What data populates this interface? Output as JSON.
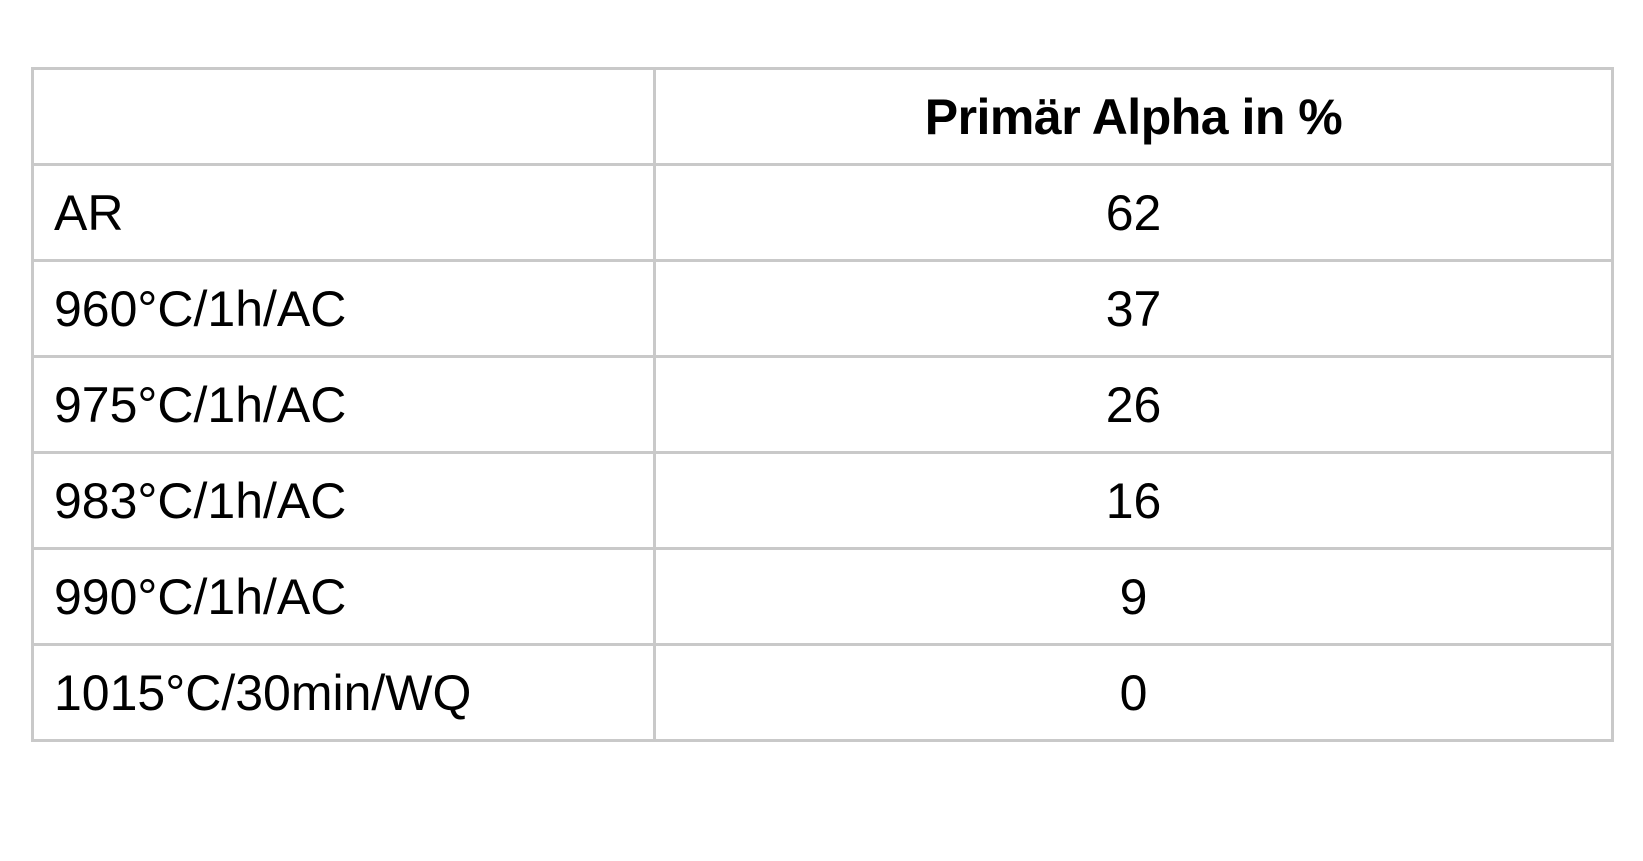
{
  "table": {
    "header": {
      "label_column": "",
      "value_column": "Primär Alpha in %"
    },
    "rows": [
      {
        "condition": "AR",
        "value": "62"
      },
      {
        "condition": "960°C/1h/AC",
        "value": "37"
      },
      {
        "condition": "975°C/1h/AC",
        "value": "26"
      },
      {
        "condition": "983°C/1h/AC",
        "value": "16"
      },
      {
        "condition": "990°C/1h/AC",
        "value": "9"
      },
      {
        "condition": "1015°C/30min/WQ",
        "value": "0"
      }
    ],
    "border_color": "#c9c9c9"
  }
}
